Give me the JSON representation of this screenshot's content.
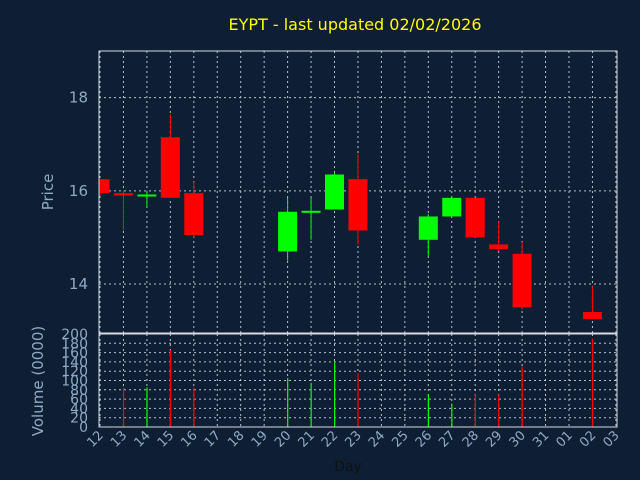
{
  "colors": {
    "background": "#0f1f33",
    "frame": "#d6dbe4",
    "grid": "#d6dbe4",
    "title": "#ffff00",
    "axis_text": "#8fa9c8",
    "up": "#00ff00",
    "down": "#ff0000"
  },
  "chart_data": {
    "type": "candlestick",
    "title": "EYPT - last updated 02/02/2026",
    "xlabel": "Day",
    "ylabel": "Price",
    "volume_label": "Volume (0000)",
    "ylim": [
      12.95,
      19.0
    ],
    "yticks": [
      14,
      16,
      18
    ],
    "volume_ylim": [
      0,
      200
    ],
    "volume_yticks": [
      0,
      20,
      40,
      60,
      80,
      100,
      120,
      140,
      160,
      180,
      200
    ],
    "grid": true,
    "x_ticks": [
      "12",
      "13",
      "14",
      "15",
      "16",
      "17",
      "18",
      "19",
      "20",
      "21",
      "22",
      "23",
      "24",
      "25",
      "26",
      "27",
      "28",
      "29",
      "30",
      "31",
      "01",
      "02",
      "03"
    ],
    "candles": [
      {
        "day": "12",
        "open": 16.25,
        "high": 16.25,
        "low": 15.9,
        "close": 15.95,
        "volume": 0
      },
      {
        "day": "13",
        "open": 15.95,
        "high": 16.0,
        "low": 15.15,
        "close": 15.9,
        "volume": 85
      },
      {
        "day": "14",
        "open": 15.9,
        "high": 16.0,
        "low": 15.65,
        "close": 15.9,
        "volume": 85
      },
      {
        "day": "15",
        "open": 17.15,
        "high": 17.65,
        "low": 15.85,
        "close": 15.85,
        "volume": 165
      },
      {
        "day": "16",
        "open": 15.95,
        "high": 16.2,
        "low": 15.0,
        "close": 15.05,
        "volume": 85
      },
      {
        "day": "20",
        "open": 14.7,
        "high": 15.85,
        "low": 14.5,
        "close": 15.55,
        "volume": 105
      },
      {
        "day": "21",
        "open": 15.55,
        "high": 15.85,
        "low": 14.95,
        "close": 15.55,
        "volume": 95
      },
      {
        "day": "22",
        "open": 15.6,
        "high": 16.4,
        "low": 15.6,
        "close": 16.35,
        "volume": 140
      },
      {
        "day": "23",
        "open": 16.25,
        "high": 16.8,
        "low": 14.85,
        "close": 15.15,
        "volume": 115
      },
      {
        "day": "26",
        "open": 14.95,
        "high": 15.5,
        "low": 14.6,
        "close": 15.45,
        "volume": 70
      },
      {
        "day": "27",
        "open": 15.45,
        "high": 15.85,
        "low": 15.45,
        "close": 15.85,
        "volume": 50
      },
      {
        "day": "28",
        "open": 15.85,
        "high": 15.85,
        "low": 15.0,
        "close": 15.0,
        "volume": 70
      },
      {
        "day": "29",
        "open": 14.85,
        "high": 15.35,
        "low": 14.7,
        "close": 14.75,
        "volume": 70
      },
      {
        "day": "30",
        "open": 14.65,
        "high": 14.9,
        "low": 13.45,
        "close": 13.5,
        "volume": 130
      },
      {
        "day": "02",
        "open": 13.4,
        "high": 13.95,
        "low": 13.25,
        "close": 13.25,
        "volume": 190
      }
    ]
  }
}
